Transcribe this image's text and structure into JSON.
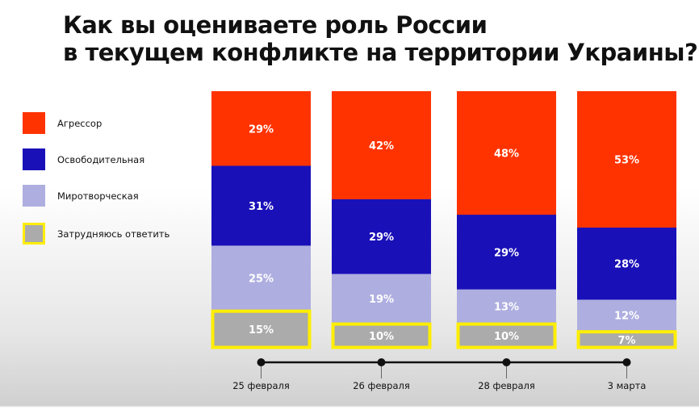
{
  "chart_data": {
    "type": "bar",
    "stacked": true,
    "title": "Как вы оцениваете роль России в текущем конфликте на территории Украины?",
    "title_lines": [
      "Как вы оцениваете роль России",
      "в текущем конфликте на территории Украины?"
    ],
    "categories": [
      "25 февраля",
      "26 февраля",
      "28 февраля",
      "3 марта"
    ],
    "series": [
      {
        "name": "Агрессор",
        "color": "#ff3300",
        "values": [
          29,
          42,
          48,
          53
        ]
      },
      {
        "name": "Освободительная",
        "color": "#1a10b8",
        "values": [
          31,
          29,
          29,
          28
        ]
      },
      {
        "name": "Миротворческая",
        "color": "#aeaee0",
        "values": [
          25,
          19,
          13,
          12
        ]
      },
      {
        "name": "Затрудняюсь ответить",
        "color": "#ababab",
        "border": "#ffee00",
        "values": [
          15,
          10,
          10,
          7
        ]
      }
    ],
    "unit": "%",
    "legend_position": "left",
    "ylim": [
      0,
      100
    ]
  }
}
